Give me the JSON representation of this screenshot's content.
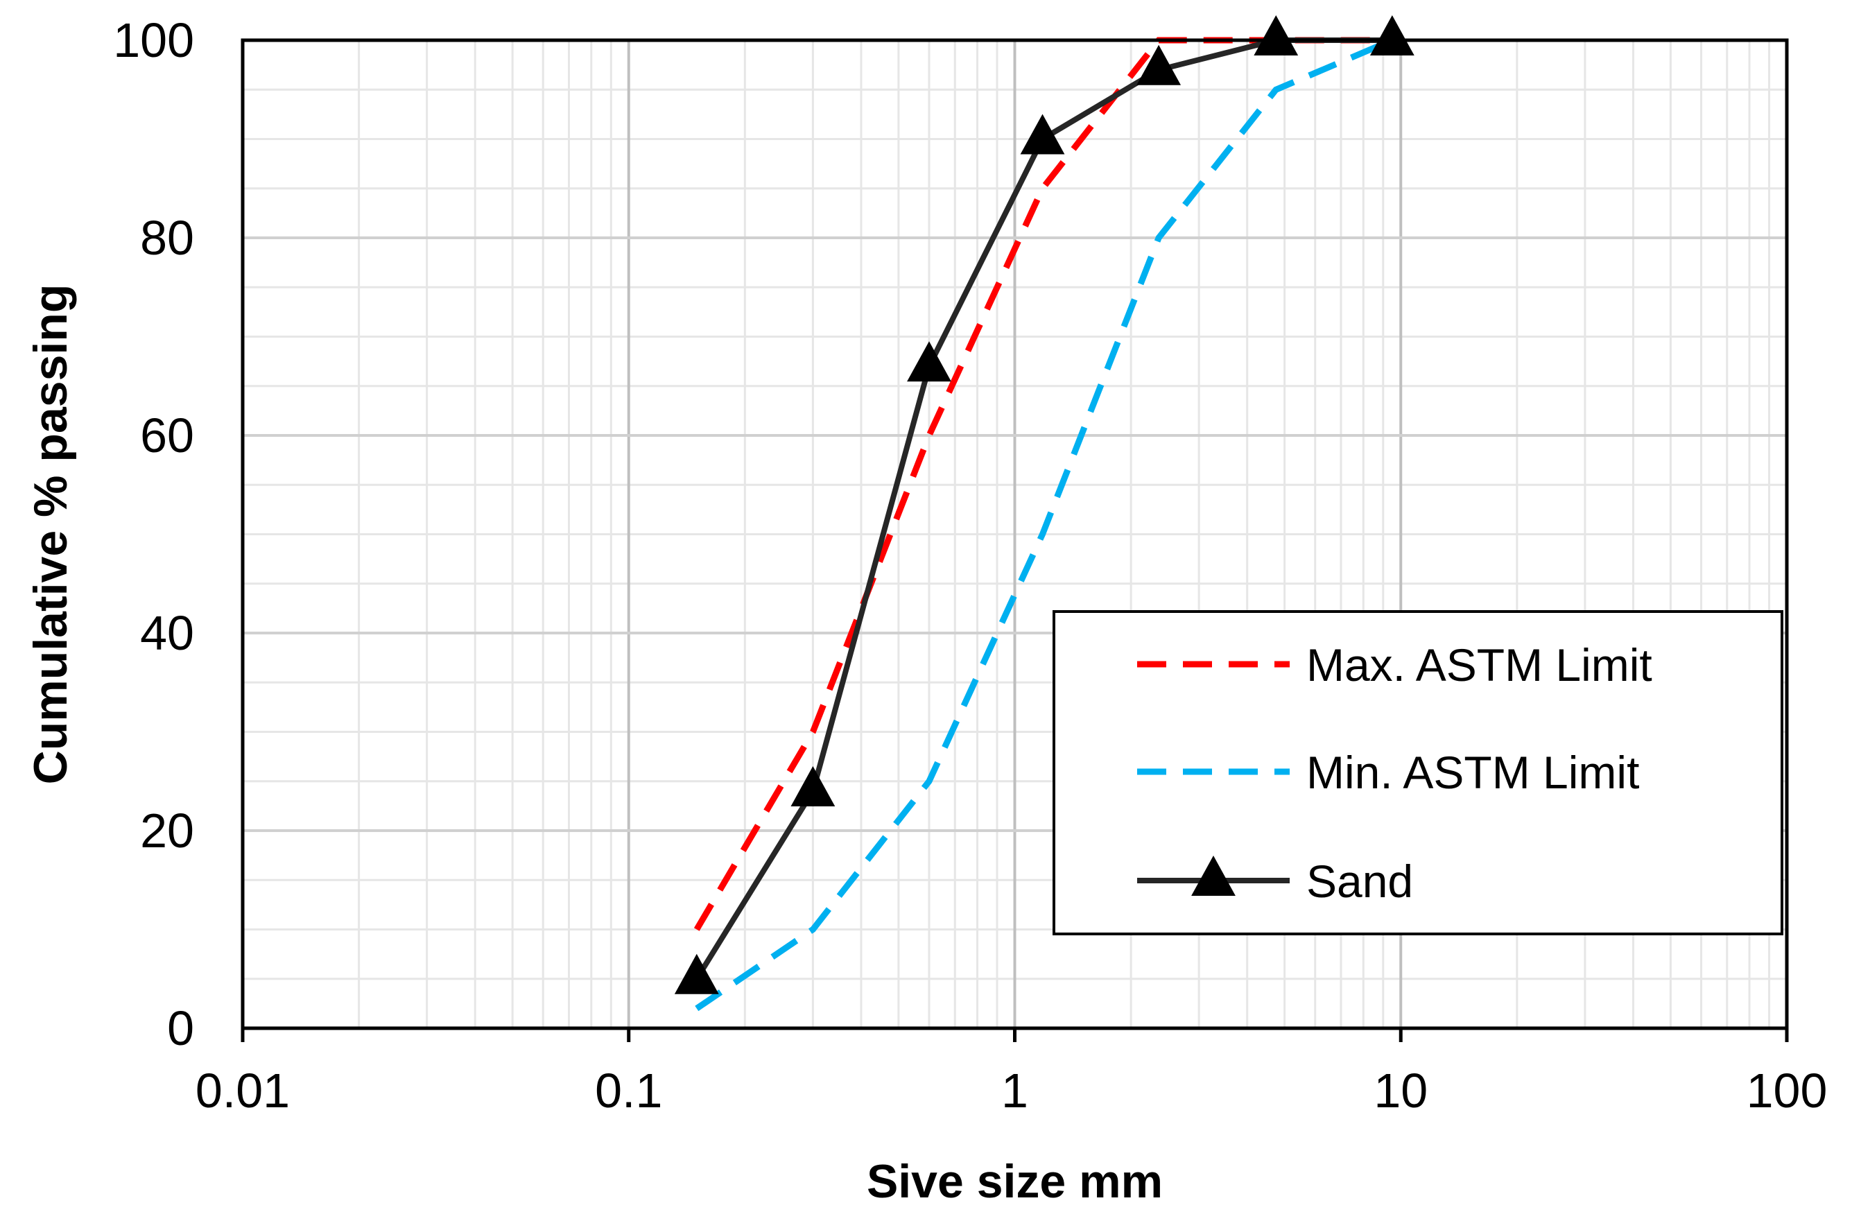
{
  "chart_data": {
    "type": "line",
    "title": "",
    "xlabel": "Sive size mm",
    "ylabel": "Cumulative % passing",
    "x_scale": "log",
    "xlim": [
      0.01,
      100
    ],
    "ylim": [
      0,
      100
    ],
    "x_ticks": [
      0.01,
      0.1,
      1,
      10,
      100
    ],
    "x_tick_labels": [
      "0.01",
      "0.1",
      "1",
      "10",
      "100"
    ],
    "y_ticks": [
      0,
      20,
      40,
      60,
      80,
      100
    ],
    "y_tick_labels": [
      "0",
      "20",
      "40",
      "60",
      "80",
      "100"
    ],
    "grid": true,
    "legend_position": "right",
    "series": [
      {
        "name": "Max. ASTM Limit",
        "color": "#ff0000",
        "dash": "dashed",
        "marker": "none",
        "x": [
          0.15,
          0.3,
          0.6,
          1.18,
          2.36,
          4.75,
          9.5
        ],
        "y": [
          10,
          30,
          60,
          85,
          100,
          100,
          100
        ]
      },
      {
        "name": "Min. ASTM Limit",
        "color": "#00b0f0",
        "dash": "dashed",
        "marker": "none",
        "x": [
          0.15,
          0.3,
          0.6,
          1.18,
          2.36,
          4.75,
          9.5
        ],
        "y": [
          2,
          10,
          25,
          50,
          80,
          95,
          100
        ]
      },
      {
        "name": "Sand",
        "color": "#262626",
        "dash": "solid",
        "marker": "triangle",
        "x": [
          0.15,
          0.3,
          0.6,
          1.18,
          2.36,
          4.75,
          9.5
        ],
        "y": [
          5,
          24,
          67,
          90,
          97,
          100,
          100
        ]
      }
    ]
  }
}
